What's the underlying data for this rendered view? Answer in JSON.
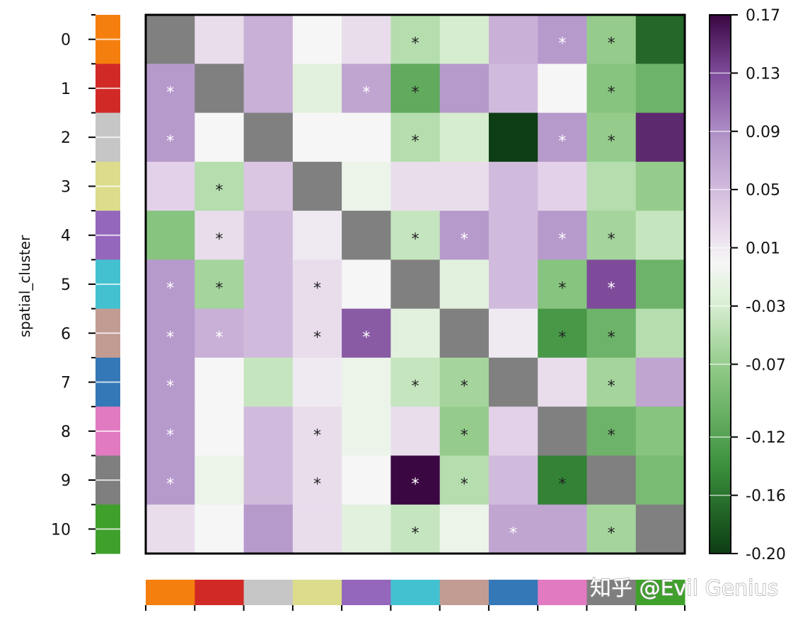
{
  "chart_data": {
    "type": "heatmap",
    "ylabel": "spatial_cluster",
    "row_labels": [
      "0",
      "1",
      "2",
      "3",
      "4",
      "5",
      "6",
      "7",
      "8",
      "9",
      "10"
    ],
    "cluster_colors": [
      "#f57f0e",
      "#d12a26",
      "#c6c6c6",
      "#dcdc8c",
      "#9467bd",
      "#43c1d0",
      "#c29c93",
      "#3578b8",
      "#e17ac1",
      "#7f7f7f",
      "#3fa02c"
    ],
    "diagonal_color": "#808080",
    "colorbar": {
      "min": -0.2,
      "max": 0.17,
      "tick_values": [
        0.17,
        0.13,
        0.09,
        0.05,
        0.01,
        -0.03,
        -0.07,
        -0.12,
        -0.16,
        -0.2
      ],
      "tick_labels": [
        "0.17",
        "0.13",
        "0.09",
        "0.05",
        "0.01",
        "-0.03",
        "-0.07",
        "-0.12",
        "-0.16",
        "-0.20"
      ]
    },
    "values": [
      [
        null,
        0.02,
        0.06,
        0.0,
        0.02,
        -0.05,
        -0.03,
        0.06,
        0.08,
        -0.07,
        -0.17
      ],
      [
        0.08,
        null,
        0.06,
        -0.02,
        0.07,
        -0.11,
        0.08,
        0.05,
        0.0,
        -0.08,
        -0.1
      ],
      [
        0.08,
        0.0,
        null,
        0.0,
        0.0,
        -0.05,
        -0.03,
        -0.2,
        0.08,
        -0.07,
        0.15
      ],
      [
        0.03,
        -0.05,
        0.04,
        null,
        -0.01,
        0.02,
        0.02,
        0.05,
        0.03,
        -0.05,
        -0.07
      ],
      [
        -0.08,
        0.02,
        0.05,
        0.01,
        null,
        -0.04,
        0.08,
        0.05,
        0.08,
        -0.06,
        -0.04
      ],
      [
        0.08,
        -0.06,
        0.05,
        0.02,
        0.0,
        null,
        -0.02,
        0.05,
        -0.08,
        0.13,
        -0.1
      ],
      [
        0.08,
        0.06,
        0.05,
        0.02,
        0.12,
        -0.02,
        null,
        0.01,
        -0.13,
        -0.1,
        -0.05
      ],
      [
        0.08,
        0.0,
        -0.04,
        0.01,
        -0.01,
        -0.04,
        -0.06,
        null,
        0.02,
        -0.06,
        0.07
      ],
      [
        0.08,
        0.0,
        0.05,
        0.02,
        -0.01,
        0.02,
        -0.07,
        0.03,
        null,
        -0.1,
        -0.08
      ],
      [
        0.08,
        -0.01,
        0.05,
        0.02,
        0.0,
        0.17,
        -0.05,
        0.05,
        -0.15,
        null,
        -0.09
      ],
      [
        0.02,
        0.0,
        0.08,
        0.02,
        -0.02,
        -0.04,
        -0.01,
        0.07,
        0.07,
        -0.06,
        null
      ]
    ],
    "significant": [
      [
        false,
        false,
        false,
        false,
        false,
        true,
        false,
        false,
        true,
        true,
        false
      ],
      [
        true,
        false,
        false,
        false,
        true,
        true,
        false,
        false,
        false,
        true,
        false
      ],
      [
        true,
        false,
        false,
        false,
        false,
        true,
        false,
        false,
        true,
        true,
        false
      ],
      [
        false,
        true,
        false,
        false,
        false,
        false,
        false,
        false,
        false,
        false,
        false
      ],
      [
        false,
        true,
        false,
        false,
        false,
        true,
        true,
        false,
        true,
        true,
        false
      ],
      [
        true,
        true,
        false,
        true,
        false,
        false,
        false,
        false,
        true,
        true,
        false
      ],
      [
        true,
        true,
        false,
        true,
        true,
        false,
        false,
        false,
        true,
        true,
        false
      ],
      [
        true,
        false,
        false,
        false,
        false,
        true,
        true,
        false,
        false,
        true,
        false
      ],
      [
        true,
        false,
        false,
        true,
        false,
        false,
        true,
        false,
        false,
        true,
        false
      ],
      [
        true,
        false,
        false,
        true,
        false,
        true,
        true,
        false,
        true,
        false,
        false
      ],
      [
        false,
        false,
        false,
        false,
        false,
        true,
        false,
        true,
        false,
        true,
        false
      ]
    ],
    "significance_marker": "*"
  },
  "watermark": {
    "text": "知乎 @Evil Genius"
  }
}
